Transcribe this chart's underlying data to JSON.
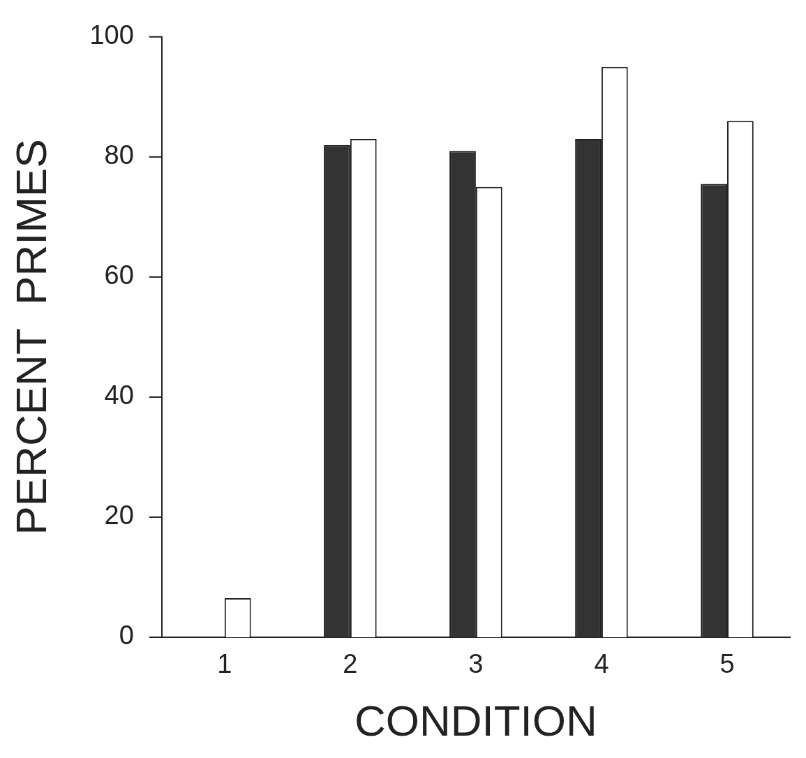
{
  "chart_data": {
    "type": "bar",
    "xlabel": "CONDITION",
    "ylabel": "PERCENT  PRIMES",
    "categories": [
      "1",
      "2",
      "3",
      "4",
      "5"
    ],
    "series": [
      {
        "color": "#333333",
        "values": [
          null,
          82,
          81,
          83,
          75.5
        ]
      },
      {
        "color": "#ffffff",
        "values": [
          6.5,
          83,
          75,
          95,
          86
        ]
      }
    ],
    "ylim": [
      0,
      100
    ],
    "yticks": [
      0,
      20,
      40,
      60,
      80,
      100
    ],
    "grid": false,
    "legend": false
  }
}
